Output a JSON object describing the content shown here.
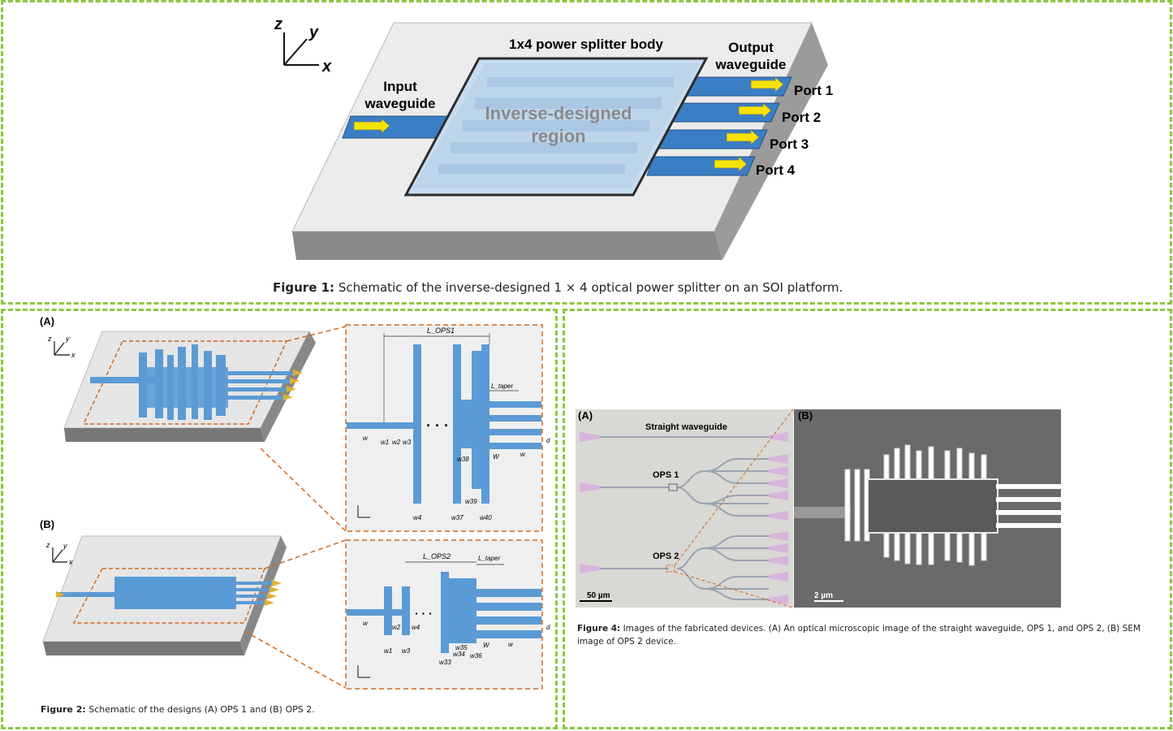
{
  "figure1": {
    "axes": {
      "z": "z",
      "y": "y",
      "x": "x"
    },
    "body_label": "1x4 power splitter body",
    "input_label_line1": "Input",
    "input_label_line2": "waveguide",
    "output_label_line1": "Output",
    "output_label_line2": "waveguide",
    "region_line1": "Inverse-designed",
    "region_line2": "region",
    "ports": [
      "Port 1",
      "Port 2",
      "Port 3",
      "Port 4"
    ],
    "caption_label": "Figure 1:",
    "caption_text": "Schematic of the inverse-designed 1 × 4 optical power splitter on an SOI platform."
  },
  "figure2": {
    "panel_a": "(A)",
    "panel_b": "(B)",
    "axes": {
      "z": "z",
      "y": "y",
      "x": "x"
    },
    "detail_a": {
      "l_ops": "L_OPS1",
      "l_taper": "L_taper",
      "labels": [
        "w",
        "w1",
        "w2",
        "w3",
        "w4",
        "w37",
        "w38",
        "w39",
        "w40",
        "W",
        "w",
        "d"
      ]
    },
    "detail_b": {
      "l_ops": "L_OPS2",
      "l_taper": "L_taper",
      "labels": [
        "w",
        "w1",
        "w2",
        "w3",
        "w4",
        "w33",
        "w34",
        "w35",
        "w36",
        "W",
        "w",
        "d"
      ]
    },
    "caption_label": "Figure 2:",
    "caption_text": "Schematic of the designs (A) OPS 1 and (B) OPS 2."
  },
  "figure4": {
    "panel_a": "(A)",
    "panel_b": "(B)",
    "straight_label": "Straight waveguide",
    "ops1_label": "OPS 1",
    "ops2_label": "OPS 2",
    "scale_a": "50 µm",
    "scale_b": "2 µm",
    "caption_label": "Figure 4:",
    "caption_text": "Images of the fabricated devices. (A) An optical microscopic image of the straight waveguide, OPS 1, and OPS 2, (B) SEM image of OPS 2 device."
  },
  "colors": {
    "frame": "#8cc63f",
    "waveguide": "#3a7fc6",
    "arrow": "#f5e400",
    "dash": "#d2691e",
    "fig2_blue": "#5b9bd5"
  }
}
